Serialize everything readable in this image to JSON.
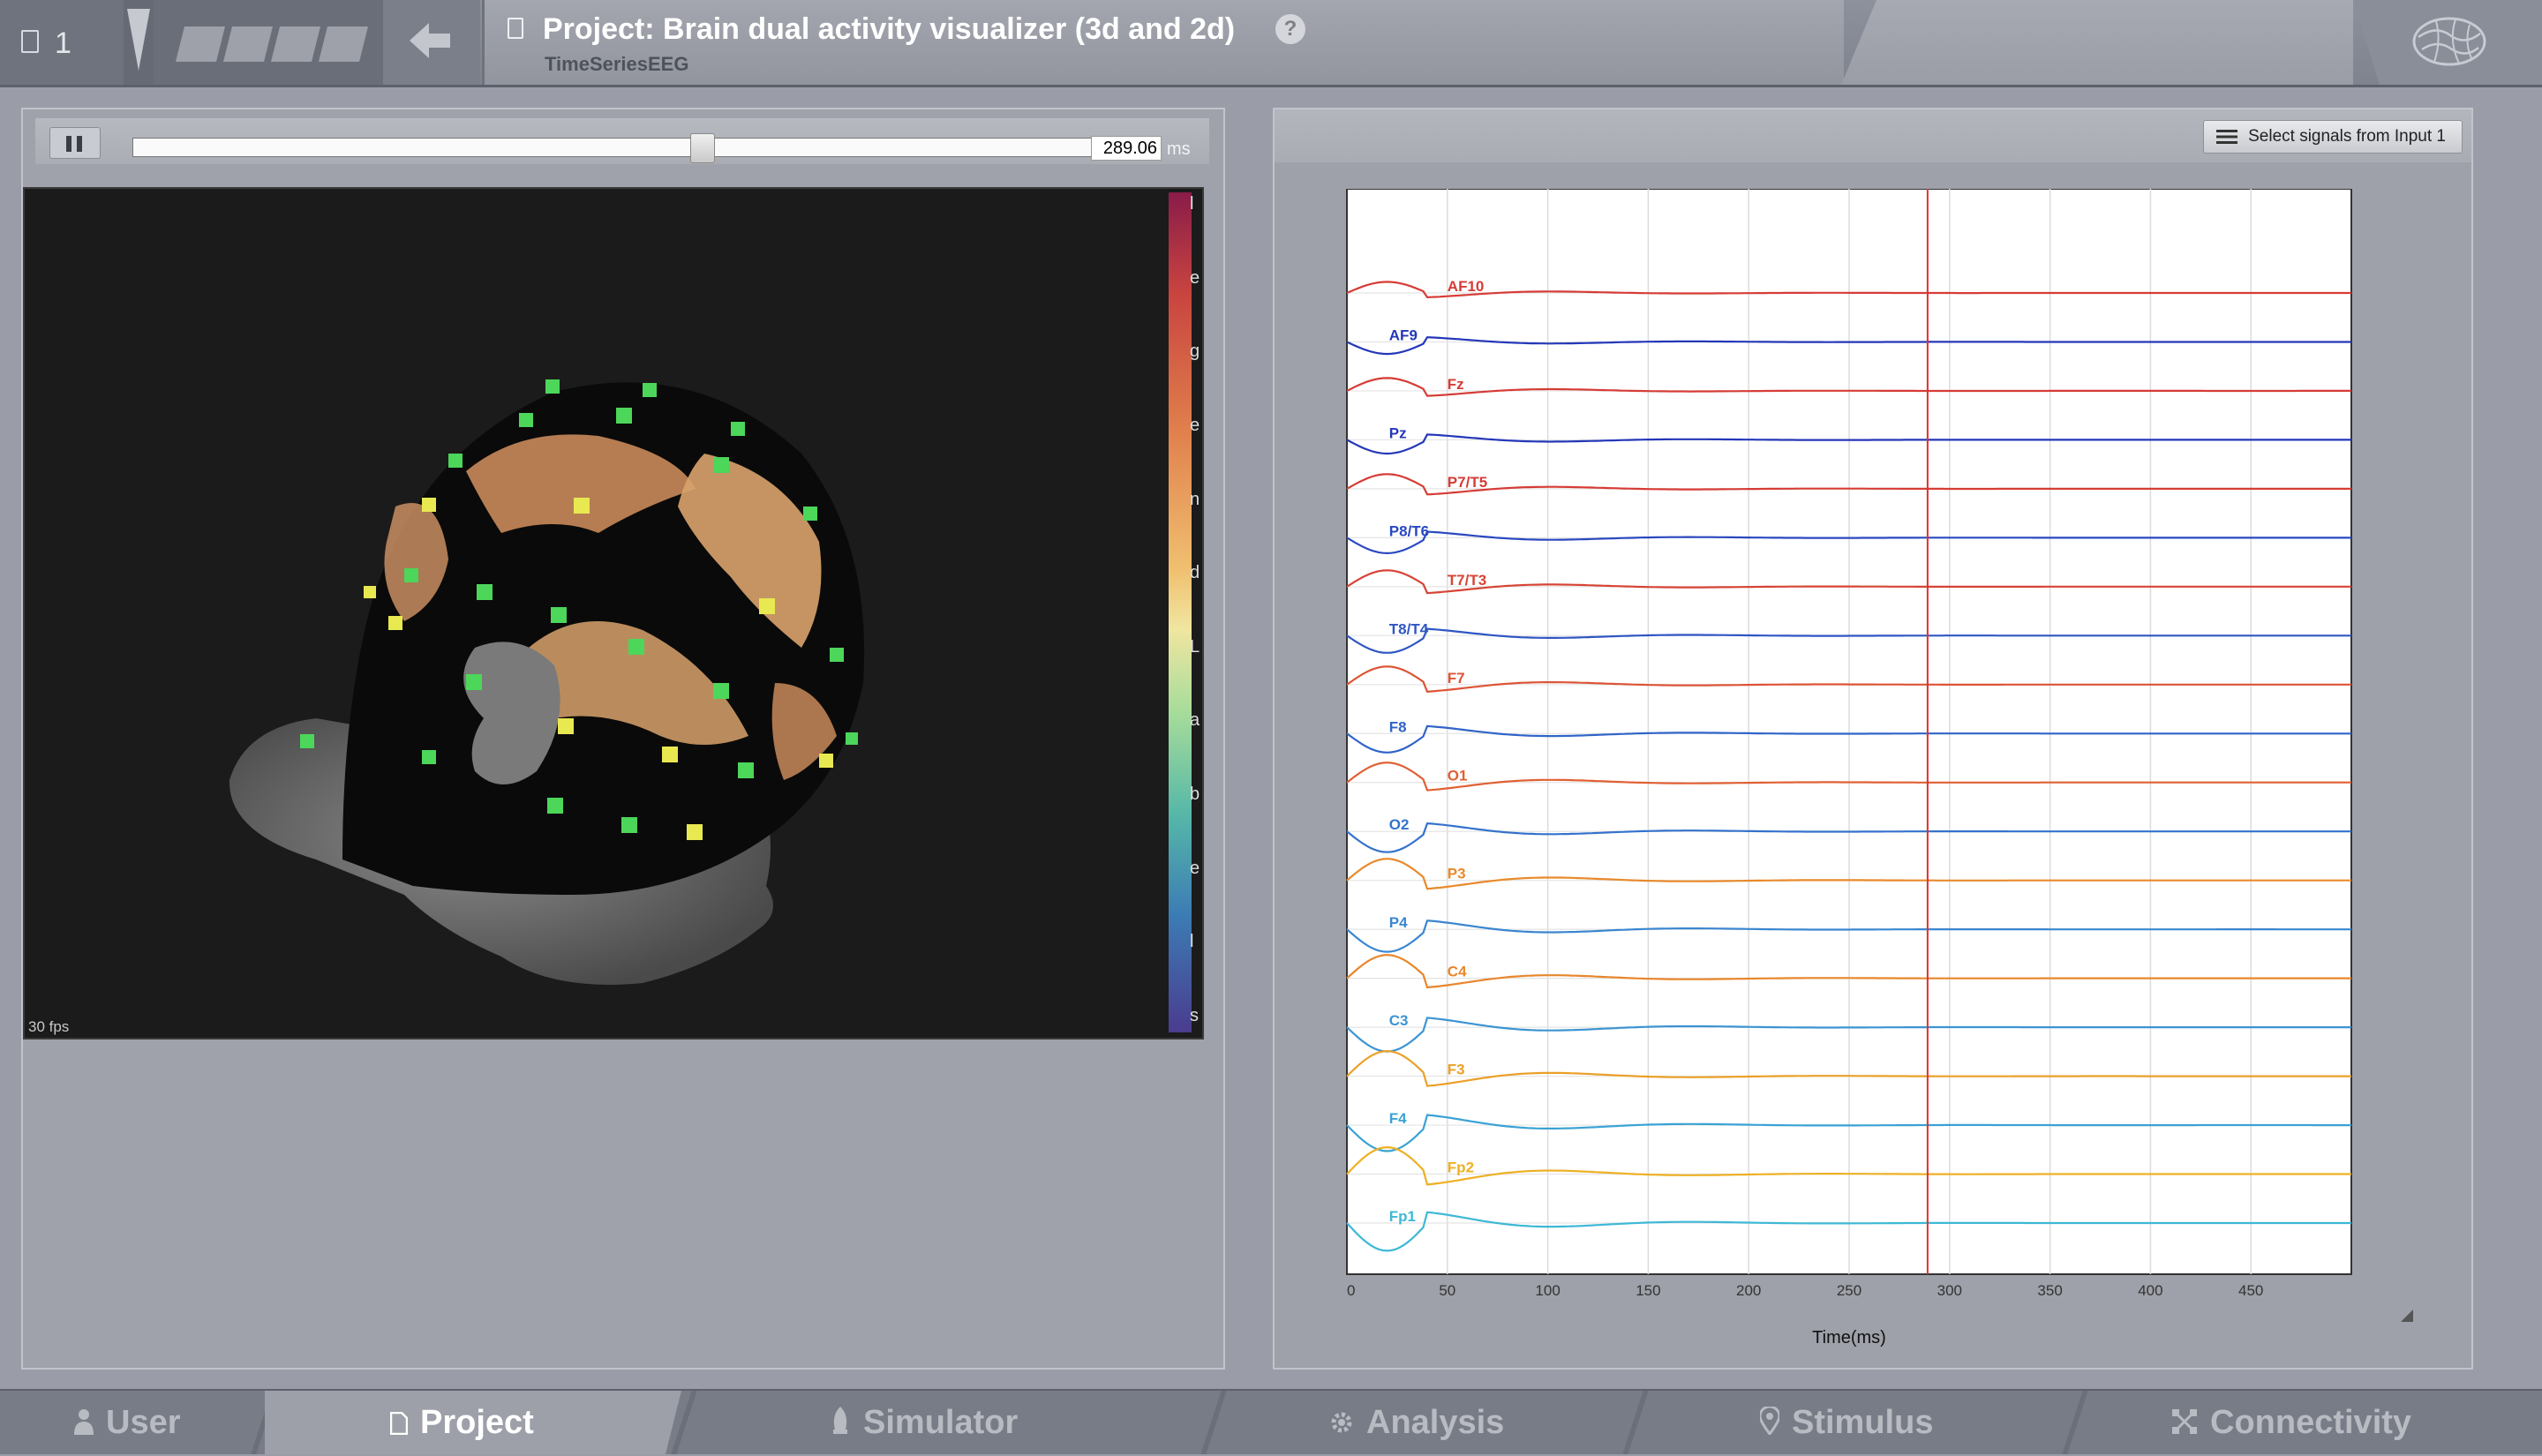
{
  "topbar": {
    "project_count": "1",
    "title": "Project: Brain dual activity visualizer (3d and 2d)",
    "help": "?",
    "subtitle": "TimeSeriesEEG"
  },
  "player": {
    "time_value": "289.06",
    "time_unit": "ms",
    "slider_fraction": 0.59
  },
  "viewport": {
    "fps": "30 fps",
    "colorbar_letters": [
      "l",
      "e",
      "g",
      "e",
      "n",
      "d",
      "L",
      "a",
      "b",
      "e",
      "l",
      "s"
    ]
  },
  "right_panel": {
    "select_button": "Select signals from Input 1"
  },
  "chart_data": {
    "type": "line",
    "xlabel": "Time(ms)",
    "xlim": [
      0,
      500
    ],
    "xticks": [
      0,
      50,
      100,
      150,
      200,
      250,
      300,
      350,
      400,
      450
    ],
    "cursor_x": 289.06,
    "grid": true,
    "series": [
      {
        "name": "AF10",
        "color": "#d63c36"
      },
      {
        "name": "AF9",
        "color": "#2437b8"
      },
      {
        "name": "Fz",
        "color": "#d63c36"
      },
      {
        "name": "Pz",
        "color": "#2437b8"
      },
      {
        "name": "P7/T5",
        "color": "#d63c36"
      },
      {
        "name": "P8/T6",
        "color": "#2a48c0"
      },
      {
        "name": "T7/T3",
        "color": "#d64436"
      },
      {
        "name": "T8/T4",
        "color": "#2f56c4"
      },
      {
        "name": "F7",
        "color": "#dc5436"
      },
      {
        "name": "F8",
        "color": "#3064c8"
      },
      {
        "name": "O1",
        "color": "#e06034"
      },
      {
        "name": "O2",
        "color": "#3472cc"
      },
      {
        "name": "P3",
        "color": "#e88a2c"
      },
      {
        "name": "P4",
        "color": "#3a86d0"
      },
      {
        "name": "C4",
        "color": "#e8862c"
      },
      {
        "name": "C3",
        "color": "#3c94d2"
      },
      {
        "name": "F3",
        "color": "#eaa028"
      },
      {
        "name": "F4",
        "color": "#3aa2d4"
      },
      {
        "name": "Fp2",
        "color": "#eeb024"
      },
      {
        "name": "Fp1",
        "color": "#3eb8d6"
      }
    ]
  },
  "bottomnav": {
    "tabs": [
      "User",
      "Project",
      "Simulator",
      "Analysis",
      "Stimulus",
      "Connectivity"
    ]
  }
}
